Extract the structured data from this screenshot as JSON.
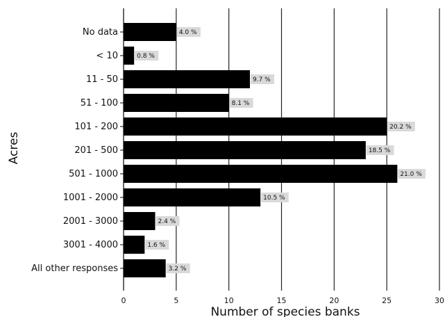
{
  "chart_data": {
    "type": "bar",
    "orientation": "horizontal",
    "title": "",
    "xlabel": "Number of species banks",
    "ylabel": "Acres",
    "xlim": [
      0,
      30
    ],
    "xticks": [
      "0",
      "5",
      "10",
      "15",
      "20",
      "25",
      "30"
    ],
    "grid": "vertical",
    "bar_color": "#000000",
    "label_bg_color": "#d9d9d9",
    "categories": [
      "No data",
      "< 10",
      "11 - 50",
      "51 - 100",
      "101 - 200",
      "201 - 500",
      "501 - 1000",
      "1001 - 2000",
      "2001 - 3000",
      "3001 - 4000",
      "All other responses"
    ],
    "values": [
      5,
      1,
      12,
      10,
      25,
      23,
      26,
      13,
      3,
      2,
      4
    ],
    "data_labels": [
      "4.0 %",
      "0.8 %",
      "9.7 %",
      "8.1 %",
      "20.2 %",
      "18.5 %",
      "21.0 %",
      "10.5 %",
      "2.4 %",
      "1.6 %",
      "3.2 %"
    ]
  }
}
